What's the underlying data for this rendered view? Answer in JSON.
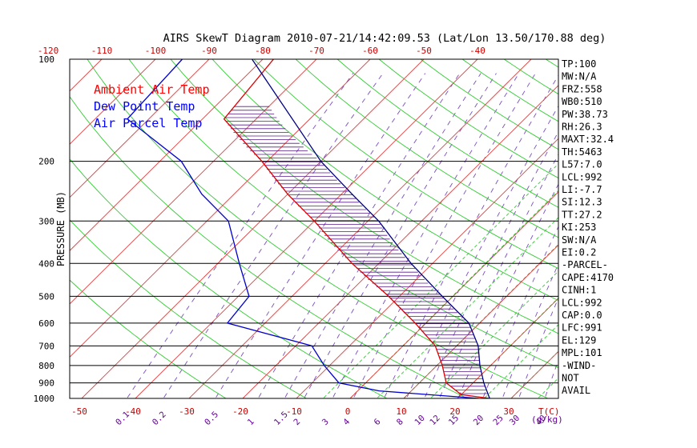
{
  "chart_data": {
    "type": "line",
    "title": "AIRS SkewT Diagram 2010-07-21/14:42:09.53 (Lat/Lon 13.50/170.88 deg)",
    "ylabel": "PRESSURE (MB)",
    "xlabel": "T(C)",
    "mixing_ratio_unit": "(g/kg)",
    "pressure_ticks": [
      100,
      200,
      300,
      400,
      500,
      600,
      700,
      800,
      900,
      1000
    ],
    "top_temperature_ticks": [
      "-120",
      "-110",
      "-100",
      "-90",
      "-80",
      "-70",
      "-60",
      "-50",
      "-40"
    ],
    "bottom_temperature_ticks": [
      "-50",
      "-40",
      "-30",
      "-20",
      "-10",
      "0",
      "10",
      "20",
      "30"
    ],
    "mixing_ratio_ticks": [
      "0.1",
      "0.2",
      "0.5",
      "1",
      "1.5",
      "2",
      "3",
      "4",
      "6",
      "8",
      "10",
      "12",
      "15",
      "20",
      "25",
      "30",
      "40"
    ],
    "legend": [
      {
        "name": "Ambient Air Temp",
        "color": "#ff0000"
      },
      {
        "name": "Dew Point Temp",
        "color": "#0000ff"
      },
      {
        "name": "Air Parcel Temp",
        "color": "#0000ff"
      }
    ],
    "series": [
      {
        "name": "Ambient Air Temp",
        "color": "#dd0000",
        "points": [
          [
            100,
            -78
          ],
          [
            150,
            -76
          ],
          [
            200,
            -61
          ],
          [
            250,
            -50
          ],
          [
            300,
            -40
          ],
          [
            400,
            -25
          ],
          [
            500,
            -12
          ],
          [
            600,
            -2
          ],
          [
            700,
            6
          ],
          [
            800,
            11
          ],
          [
            900,
            15
          ],
          [
            975,
            20
          ],
          [
            1000,
            26
          ]
        ]
      },
      {
        "name": "Dew Point Temp",
        "color": "#0000cc",
        "points": [
          [
            100,
            -95
          ],
          [
            150,
            -94
          ],
          [
            200,
            -76
          ],
          [
            250,
            -66
          ],
          [
            300,
            -56
          ],
          [
            400,
            -46
          ],
          [
            500,
            -38
          ],
          [
            600,
            -37
          ],
          [
            700,
            -17
          ],
          [
            800,
            -11
          ],
          [
            900,
            -5
          ],
          [
            950,
            4
          ],
          [
            1000,
            24
          ]
        ]
      },
      {
        "name": "Air Parcel Temp",
        "color": "#000080",
        "points": [
          [
            100,
            -82
          ],
          [
            200,
            -50
          ],
          [
            250,
            -38
          ],
          [
            300,
            -28
          ],
          [
            400,
            -14
          ],
          [
            500,
            -2
          ],
          [
            600,
            8
          ],
          [
            700,
            14
          ],
          [
            800,
            18
          ],
          [
            900,
            22
          ],
          [
            1000,
            26
          ]
        ]
      }
    ],
    "indices": [
      "TP:100",
      "MW:N/A",
      "FRZ:558",
      "WB0:510",
      "PW:38.73",
      "RH:26.3",
      "MAXT:32.4",
      "TH:5463",
      "L57:7.0",
      "LCL:992",
      "LI:-7.7",
      "SI:12.3",
      "TT:27.2",
      "KI:253",
      "SW:N/A",
      "EI:0.2",
      "-PARCEL-",
      "CAPE:4170",
      "CINH:1",
      "LCL:992",
      "CAP:0.0",
      "LFC:991",
      "EL:129",
      "MPL:101",
      "-WIND-",
      "NOT",
      "AVAIL"
    ]
  }
}
